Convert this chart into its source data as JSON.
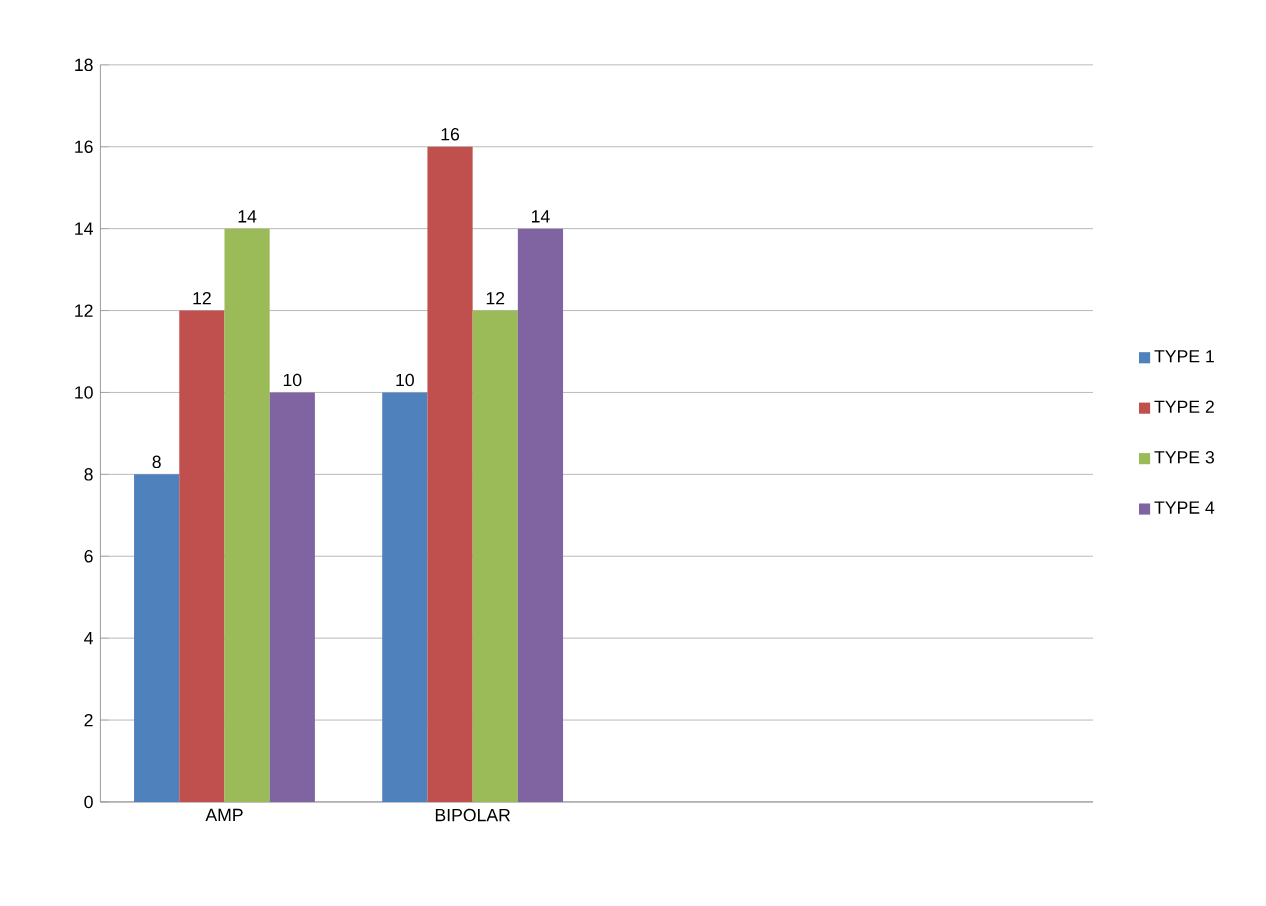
{
  "chart_data": {
    "type": "bar",
    "categories": [
      "AMP",
      "BIPOLAR",
      null,
      null
    ],
    "series": [
      {
        "name": "TYPE 1",
        "color": "#4f81bd",
        "values": [
          8,
          10,
          null,
          null
        ]
      },
      {
        "name": "TYPE 2",
        "color": "#c0504d",
        "values": [
          12,
          16,
          null,
          null
        ]
      },
      {
        "name": "TYPE 3",
        "color": "#9bbb59",
        "values": [
          14,
          12,
          null,
          null
        ]
      },
      {
        "name": "TYPE 4",
        "color": "#8064a2",
        "values": [
          10,
          14,
          null,
          null
        ]
      }
    ],
    "ylim": [
      0,
      18
    ],
    "yticks": [
      0,
      2,
      4,
      6,
      8,
      10,
      12,
      14,
      16,
      18
    ],
    "grid": "y",
    "legend": "right",
    "data_labels": true
  }
}
